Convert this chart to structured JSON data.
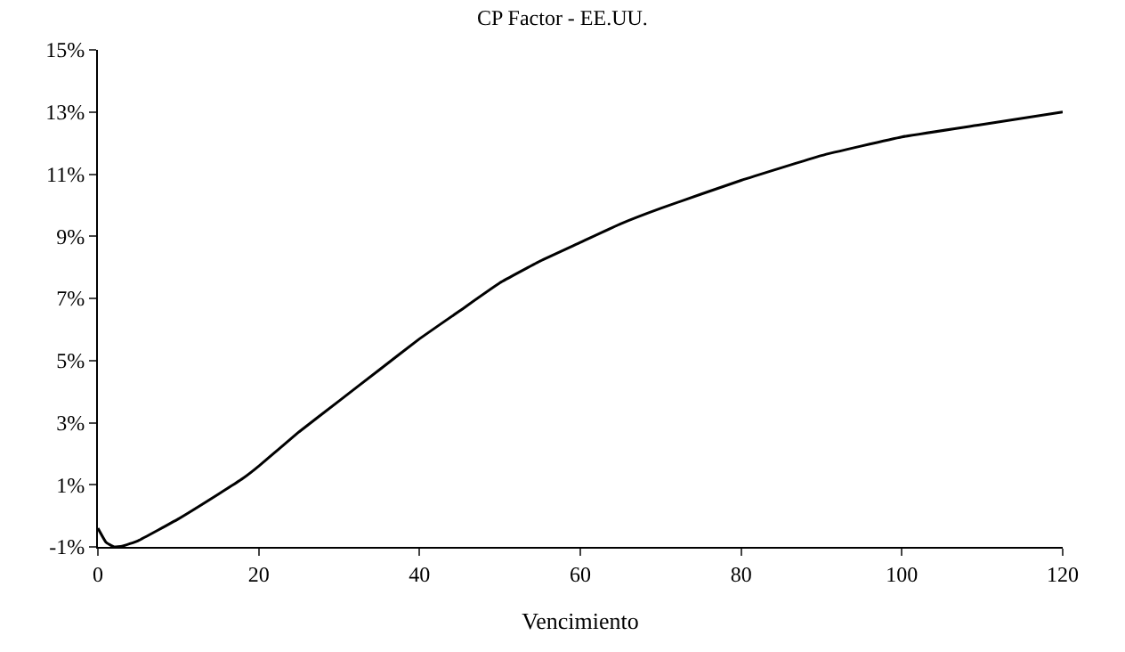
{
  "chart_data": {
    "type": "line",
    "title": "CP Factor - EE.UU.",
    "xlabel": "Vencimiento",
    "x": [
      0,
      1,
      2,
      3,
      5,
      10,
      15,
      18,
      20,
      25,
      30,
      35,
      40,
      45,
      50,
      55,
      60,
      65,
      70,
      80,
      90,
      100,
      110,
      120
    ],
    "series": [
      {
        "color": "#000000",
        "values": [
          -0.4,
          -0.85,
          -1.0,
          -0.98,
          -0.8,
          -0.1,
          0.7,
          1.2,
          1.6,
          2.7,
          3.7,
          4.7,
          5.7,
          6.6,
          7.5,
          8.2,
          8.8,
          9.4,
          9.9,
          10.8,
          11.6,
          12.2,
          12.6,
          13.0
        ]
      }
    ],
    "xlim": [
      0,
      120
    ],
    "xticks": [
      0,
      20,
      40,
      60,
      80,
      100,
      120
    ],
    "ylim": [
      -1,
      15
    ],
    "yticks": [
      {
        "value": -1,
        "label": "-1%"
      },
      {
        "value": 1,
        "label": "1%"
      },
      {
        "value": 3,
        "label": "3%"
      },
      {
        "value": 5,
        "label": "5%"
      },
      {
        "value": 7,
        "label": "7%"
      },
      {
        "value": 9,
        "label": "9%"
      },
      {
        "value": 11,
        "label": "11%"
      },
      {
        "value": 13,
        "label": "13%"
      },
      {
        "value": 15,
        "label": "15%"
      }
    ],
    "marker": "none",
    "line_style": "solid"
  }
}
